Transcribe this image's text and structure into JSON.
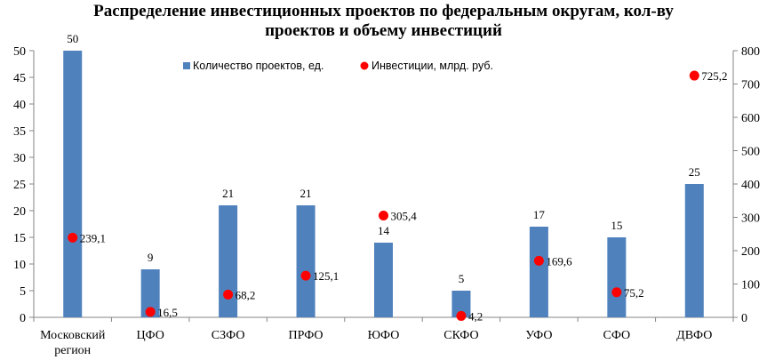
{
  "chart_data": {
    "type": "bar",
    "title_line1": "Распределение инвестиционных  проектов по федеральным округам, кол-ву",
    "title_line2": "проектов и объему инвестиций",
    "categories": [
      [
        "Московский",
        "регион"
      ],
      [
        "ЦФО"
      ],
      [
        "СЗФО"
      ],
      [
        "ПРФО"
      ],
      [
        "ЮФО"
      ],
      [
        "СКФО"
      ],
      [
        "УФО"
      ],
      [
        "СФО"
      ],
      [
        "ДВФО"
      ]
    ],
    "series": [
      {
        "name": "Количество проектов, ед.",
        "kind": "bar",
        "axis": "left",
        "color": "#4f81bd",
        "values": [
          50,
          9,
          21,
          21,
          14,
          5,
          17,
          15,
          25
        ],
        "labels": [
          "50",
          "9",
          "21",
          "21",
          "14",
          "5",
          "17",
          "15",
          "25"
        ]
      },
      {
        "name": "Инвестиции,  млрд. руб.",
        "kind": "scatter",
        "axis": "right",
        "color": "#ff0000",
        "values": [
          239.1,
          16.5,
          68.2,
          125.1,
          305.4,
          4.2,
          169.6,
          75.2,
          725.2
        ],
        "labels": [
          "239,1",
          "16,5",
          "68,2",
          "125,1",
          "305,4",
          "4,2",
          "169,6",
          "75,2",
          "725,2"
        ]
      }
    ],
    "y_left": {
      "min": 0,
      "max": 50,
      "step": 5
    },
    "y_right": {
      "min": 0,
      "max": 800,
      "step": 100
    },
    "legend_position": "top-center",
    "grid": false
  }
}
